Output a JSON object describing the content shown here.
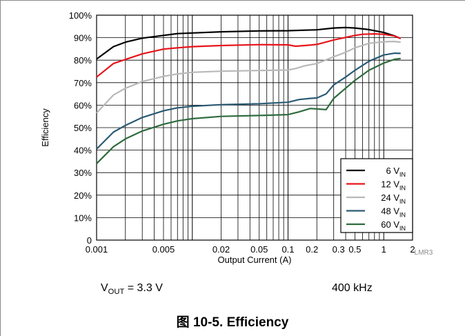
{
  "chart_data": {
    "type": "line",
    "xlabel": "Output Current (A)",
    "ylabel": "Efficiency",
    "xscale": "log",
    "xlim": [
      0.001,
      2
    ],
    "ylim": [
      0,
      100
    ],
    "x_ticks": [
      {
        "value": 0.001,
        "label": "0.001"
      },
      {
        "value": 0.005,
        "label": "0.005"
      },
      {
        "value": 0.02,
        "label": "0.02"
      },
      {
        "value": 0.05,
        "label": "0.05"
      },
      {
        "value": 0.1,
        "label": "0.1"
      },
      {
        "value": 0.2,
        "label": "0.2"
      },
      {
        "value": 0.3,
        "label": "0.3"
      },
      {
        "value": 0.5,
        "label": "0.5"
      },
      {
        "value": 1,
        "label": "1"
      },
      {
        "value": 2,
        "label": "2"
      }
    ],
    "y_ticks": [
      {
        "value": 0,
        "label": "0"
      },
      {
        "value": 10,
        "label": "10%"
      },
      {
        "value": 20,
        "label": "20%"
      },
      {
        "value": 30,
        "label": "30%"
      },
      {
        "value": 40,
        "label": "40%"
      },
      {
        "value": 50,
        "label": "50%"
      },
      {
        "value": 60,
        "label": "60%"
      },
      {
        "value": 70,
        "label": "70%"
      },
      {
        "value": 80,
        "label": "80%"
      },
      {
        "value": 90,
        "label": "90%"
      },
      {
        "value": 100,
        "label": "100%"
      }
    ],
    "grid": true,
    "legend_position": "bottom-right",
    "series": [
      {
        "name": "6 V",
        "name_sub": "IN",
        "color": "#000000",
        "points": [
          [
            0.001,
            80.5
          ],
          [
            0.0015,
            86
          ],
          [
            0.002,
            88
          ],
          [
            0.003,
            89.8
          ],
          [
            0.005,
            91
          ],
          [
            0.007,
            91.8
          ],
          [
            0.01,
            92.1
          ],
          [
            0.02,
            92.6
          ],
          [
            0.05,
            93
          ],
          [
            0.1,
            93.1
          ],
          [
            0.2,
            93.5
          ],
          [
            0.3,
            94.3
          ],
          [
            0.4,
            94.5
          ],
          [
            0.5,
            94.3
          ],
          [
            0.7,
            93.6
          ],
          [
            1,
            92.3
          ],
          [
            1.3,
            90.8
          ],
          [
            1.5,
            89.6
          ]
        ]
      },
      {
        "name": "12 V",
        "name_sub": "IN",
        "color": "#e8141b",
        "points": [
          [
            0.001,
            72.5
          ],
          [
            0.0015,
            78.5
          ],
          [
            0.002,
            80.3
          ],
          [
            0.003,
            82.8
          ],
          [
            0.005,
            84.9
          ],
          [
            0.007,
            85.5
          ],
          [
            0.01,
            86
          ],
          [
            0.02,
            86.5
          ],
          [
            0.05,
            86.9
          ],
          [
            0.1,
            86.8
          ],
          [
            0.12,
            86.2
          ],
          [
            0.15,
            86.5
          ],
          [
            0.18,
            86.8
          ],
          [
            0.2,
            87
          ],
          [
            0.3,
            89
          ],
          [
            0.5,
            91
          ],
          [
            0.6,
            91.5
          ],
          [
            0.8,
            91.7
          ],
          [
            1,
            91.5
          ],
          [
            1.3,
            90.7
          ],
          [
            1.5,
            89.6
          ]
        ]
      },
      {
        "name": "24 V",
        "name_sub": "IN",
        "color": "#b8b8b8",
        "points": [
          [
            0.001,
            56.5
          ],
          [
            0.0015,
            64.5
          ],
          [
            0.002,
            67.5
          ],
          [
            0.003,
            70.5
          ],
          [
            0.005,
            72.8
          ],
          [
            0.007,
            73.9
          ],
          [
            0.01,
            74.6
          ],
          [
            0.02,
            75.1
          ],
          [
            0.05,
            75.4
          ],
          [
            0.1,
            75.6
          ],
          [
            0.12,
            76.3
          ],
          [
            0.15,
            77.5
          ],
          [
            0.2,
            78.5
          ],
          [
            0.3,
            81.5
          ],
          [
            0.4,
            83.5
          ],
          [
            0.5,
            85.5
          ],
          [
            0.7,
            87.5
          ],
          [
            1,
            88.2
          ],
          [
            1.3,
            88.3
          ],
          [
            1.5,
            88
          ]
        ]
      },
      {
        "name": "48 V",
        "name_sub": "IN",
        "color": "#2a5a73",
        "points": [
          [
            0.001,
            40.5
          ],
          [
            0.0015,
            48
          ],
          [
            0.002,
            51
          ],
          [
            0.003,
            54.5
          ],
          [
            0.005,
            57.5
          ],
          [
            0.007,
            58.8
          ],
          [
            0.01,
            59.5
          ],
          [
            0.02,
            60.2
          ],
          [
            0.05,
            60.6
          ],
          [
            0.1,
            61.3
          ],
          [
            0.13,
            62.5
          ],
          [
            0.17,
            63
          ],
          [
            0.2,
            63.2
          ],
          [
            0.25,
            65
          ],
          [
            0.3,
            69
          ],
          [
            0.4,
            72.5
          ],
          [
            0.5,
            75.5
          ],
          [
            0.7,
            79.5
          ],
          [
            1,
            82.3
          ],
          [
            1.3,
            83.1
          ],
          [
            1.5,
            83
          ]
        ]
      },
      {
        "name": "60 V",
        "name_sub": "IN",
        "color": "#2e6b3d",
        "points": [
          [
            0.001,
            34
          ],
          [
            0.0015,
            41.5
          ],
          [
            0.002,
            45
          ],
          [
            0.003,
            48.5
          ],
          [
            0.005,
            51.5
          ],
          [
            0.007,
            53
          ],
          [
            0.01,
            54
          ],
          [
            0.02,
            55
          ],
          [
            0.05,
            55.4
          ],
          [
            0.1,
            55.8
          ],
          [
            0.13,
            57
          ],
          [
            0.17,
            58.5
          ],
          [
            0.2,
            58.3
          ],
          [
            0.25,
            58
          ],
          [
            0.3,
            63
          ],
          [
            0.4,
            67.5
          ],
          [
            0.5,
            71
          ],
          [
            0.7,
            75.5
          ],
          [
            1,
            78.7
          ],
          [
            1.3,
            80.4
          ],
          [
            1.5,
            80.7
          ]
        ]
      }
    ],
    "annotation": "LMR3"
  },
  "conditions": {
    "vout_main": "V",
    "vout_sub": "OUT",
    "vout_value": " = 3.3 V",
    "frequency": "400 kHz"
  },
  "caption": {
    "prefix": "图",
    "number": "10-5.",
    "title": "Efficiency"
  }
}
